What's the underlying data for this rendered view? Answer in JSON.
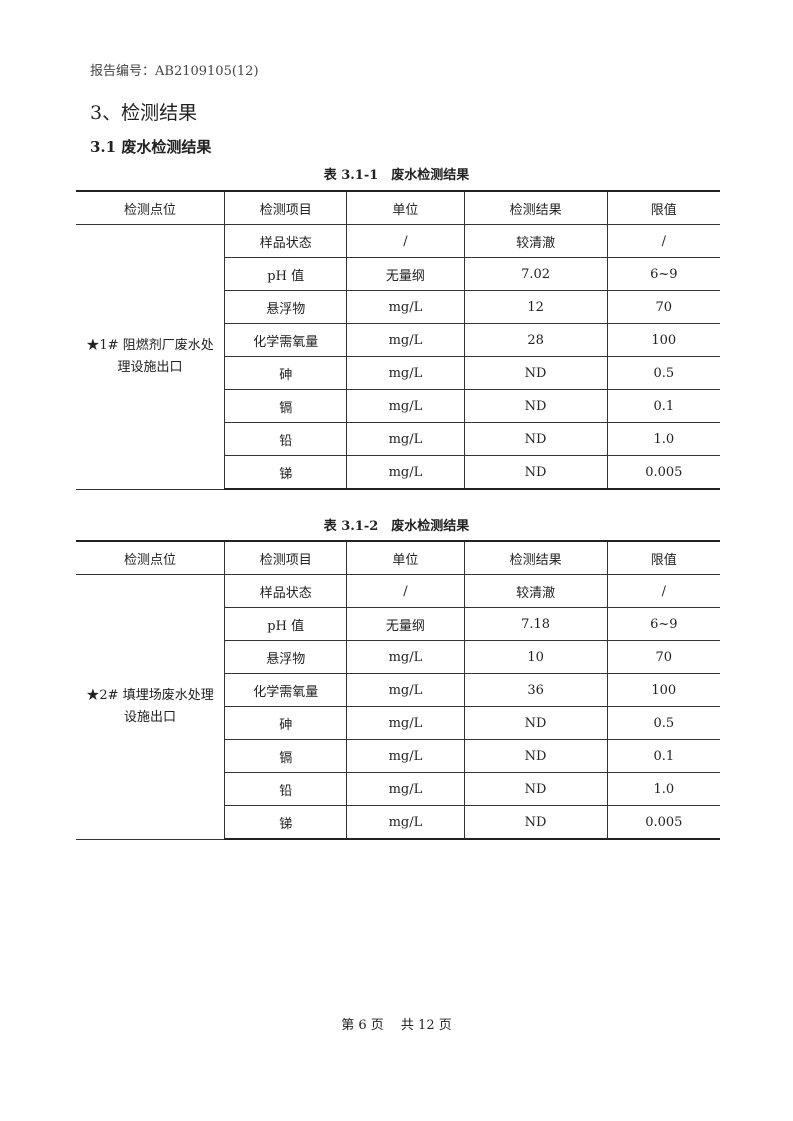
{
  "report_no": "报告编号：AB2109105(12)",
  "section_title": "3、检测结果",
  "subsection_title": "3.1 废水检测结果",
  "headers": [
    "检测点位",
    "检测项目",
    "单位",
    "检测结果",
    "限值"
  ],
  "tables": [
    {
      "caption": "表 3.1-1　废水检测结果",
      "site": "★1# 阻燃剂厂废水处理设施出口",
      "rows": [
        [
          "样品状态",
          "/",
          "较清澈",
          "/"
        ],
        [
          "pH 值",
          "无量纲",
          "7.02",
          "6~9"
        ],
        [
          "悬浮物",
          "mg/L",
          "12",
          "70"
        ],
        [
          "化学需氧量",
          "mg/L",
          "28",
          "100"
        ],
        [
          "砷",
          "mg/L",
          "ND",
          "0.5"
        ],
        [
          "镉",
          "mg/L",
          "ND",
          "0.1"
        ],
        [
          "铅",
          "mg/L",
          "ND",
          "1.0"
        ],
        [
          "锑",
          "mg/L",
          "ND",
          "0.005"
        ]
      ]
    },
    {
      "caption": "表 3.1-2　废水检测结果",
      "site": "★2# 填埋场废水处理设施出口",
      "rows": [
        [
          "样品状态",
          "/",
          "较清澈",
          "/"
        ],
        [
          "pH 值",
          "无量纲",
          "7.18",
          "6~9"
        ],
        [
          "悬浮物",
          "mg/L",
          "10",
          "70"
        ],
        [
          "化学需氧量",
          "mg/L",
          "36",
          "100"
        ],
        [
          "砷",
          "mg/L",
          "ND",
          "0.5"
        ],
        [
          "镉",
          "mg/L",
          "ND",
          "0.1"
        ],
        [
          "铅",
          "mg/L",
          "ND",
          "1.0"
        ],
        [
          "锑",
          "mg/L",
          "ND",
          "0.005"
        ]
      ]
    }
  ],
  "footer": "第 6 页　 共 12 页"
}
